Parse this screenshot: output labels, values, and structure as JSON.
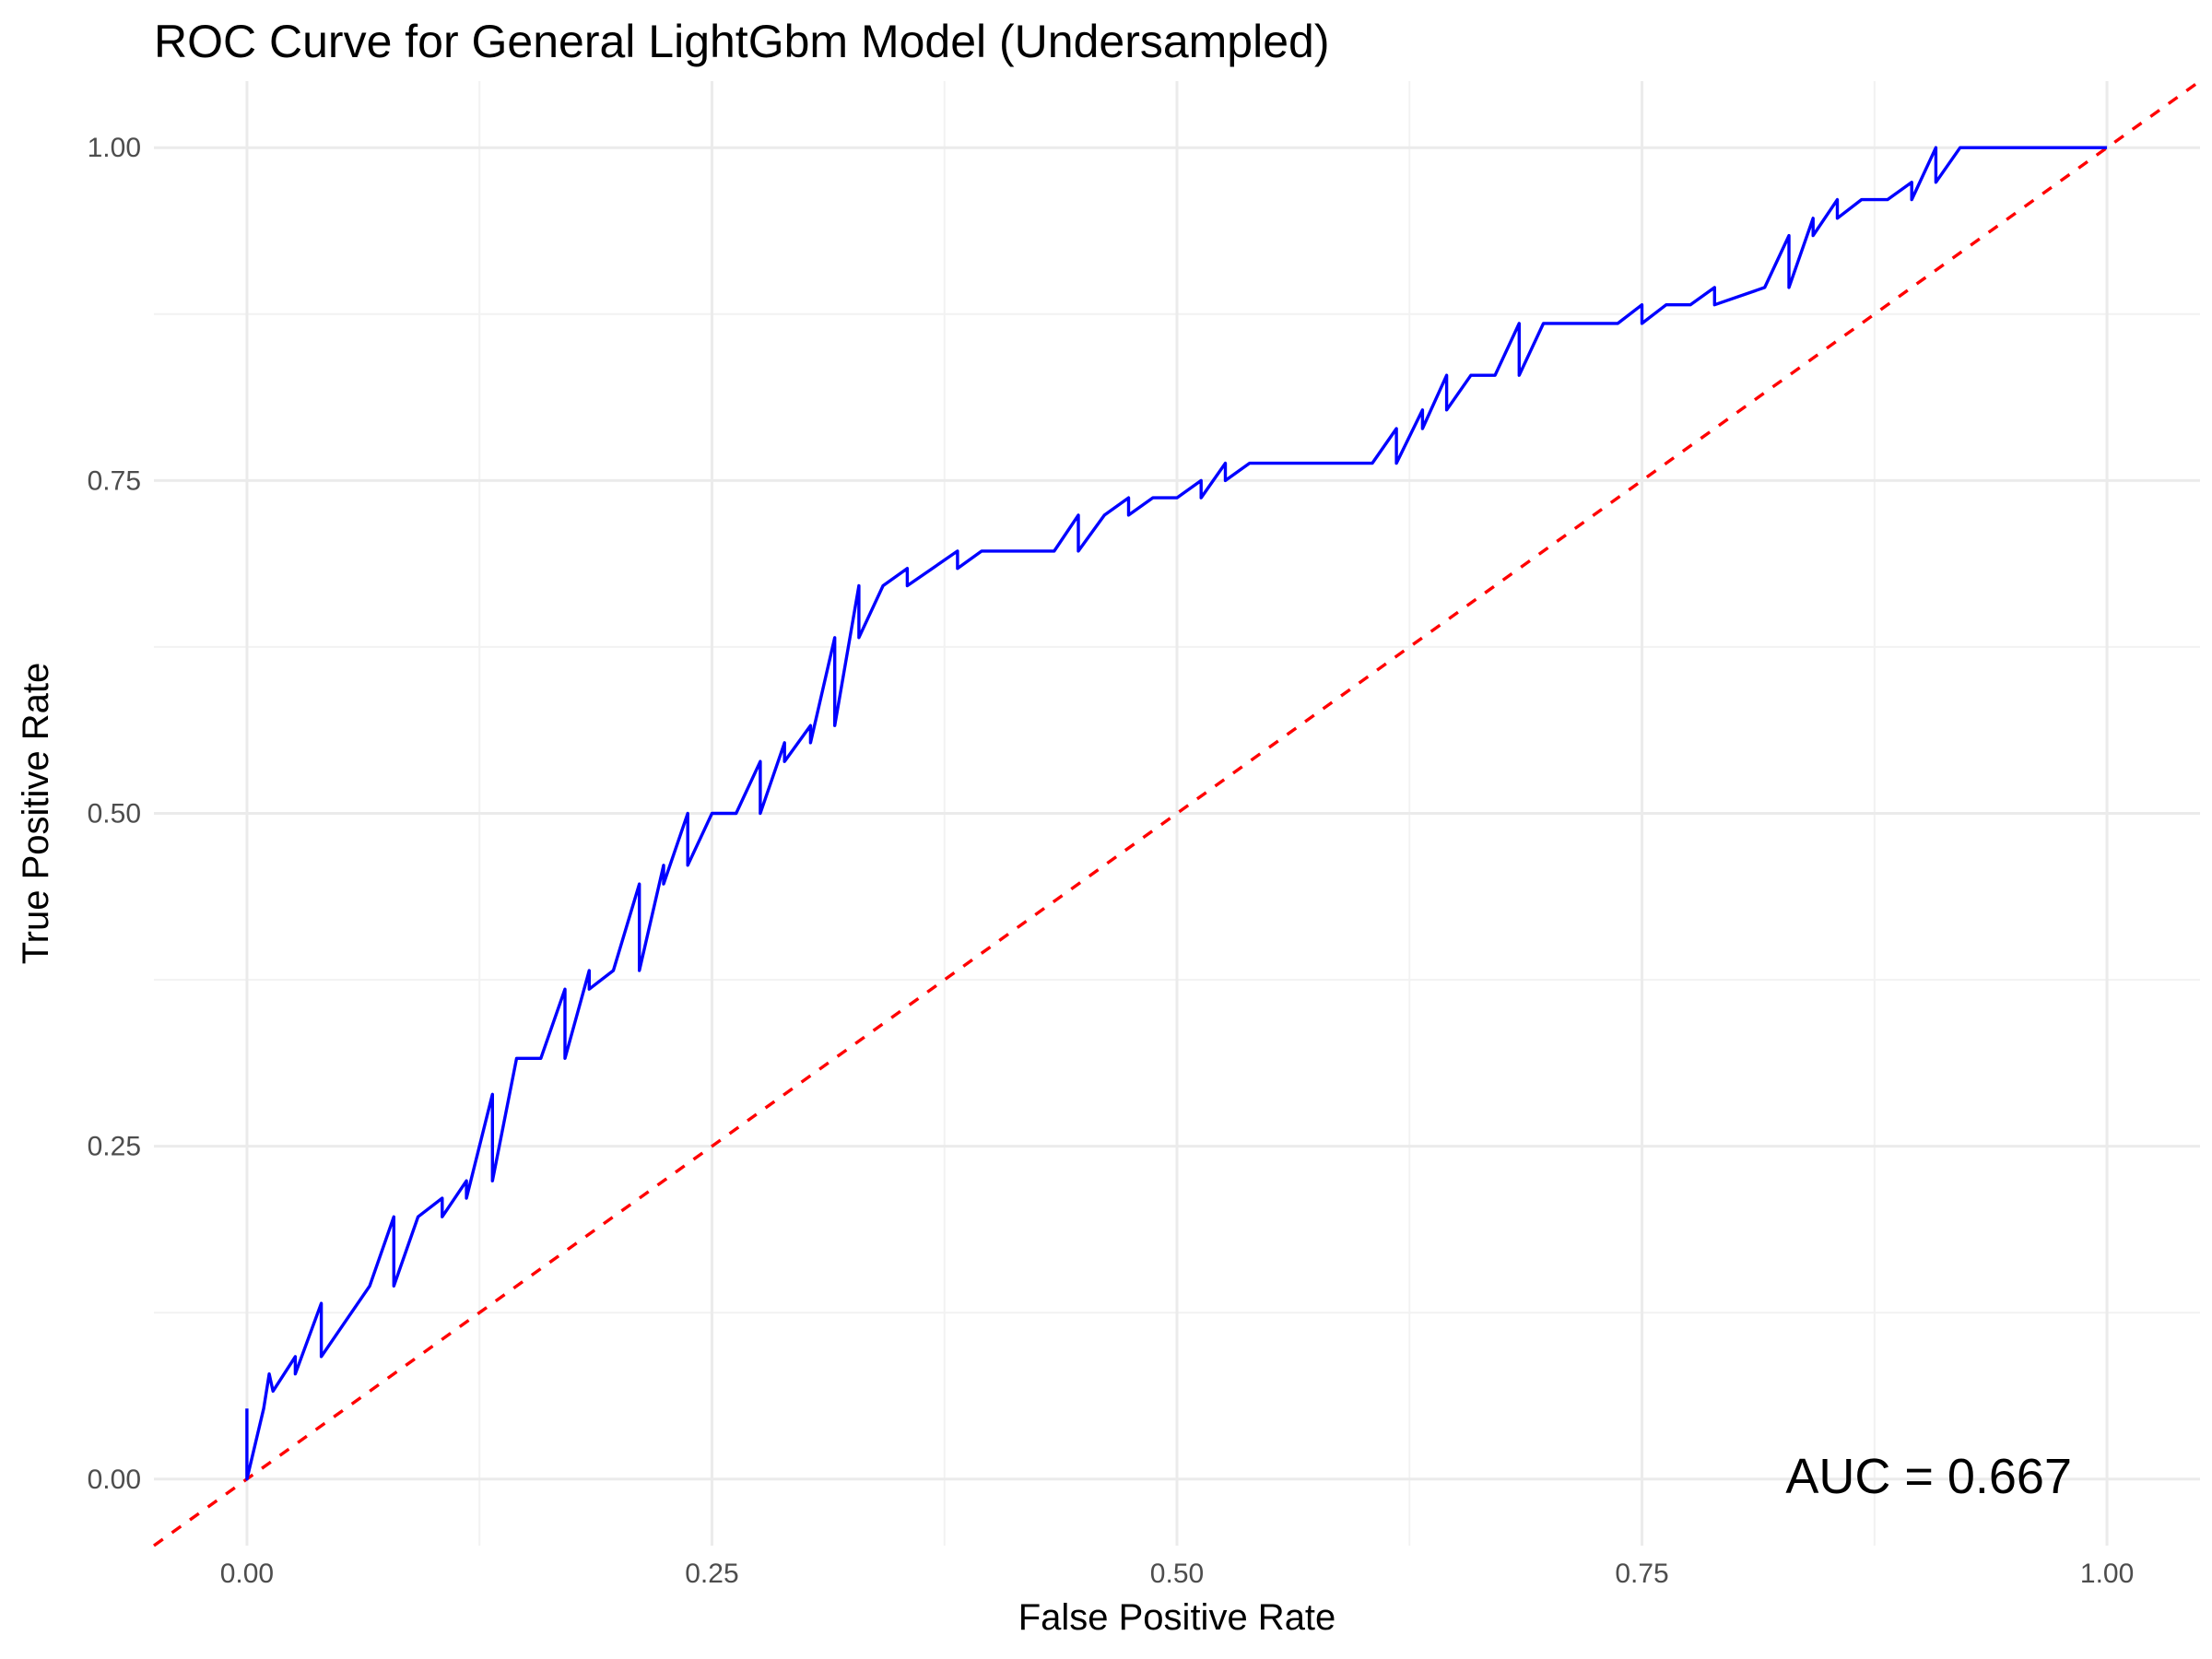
{
  "chart_data": {
    "type": "line",
    "title": "ROC Curve for General LightGbm Model (Undersampled)",
    "xlabel": "False Positive Rate",
    "ylabel": "True Positive Rate",
    "xlim": [
      -0.05,
      1.05
    ],
    "ylim": [
      -0.05,
      1.05
    ],
    "x_ticks": [
      "0.00",
      "0.25",
      "0.50",
      "0.75",
      "1.00"
    ],
    "y_ticks": [
      "0.00",
      "0.25",
      "0.50",
      "0.75",
      "1.00"
    ],
    "grid": true,
    "annotation": "AUC = 0.667",
    "series": [
      {
        "color": "#0000ff",
        "style": "solid",
        "x": [
          0.0,
          0.0,
          0.0,
          0.009,
          0.012,
          0.014,
          0.026,
          0.026,
          0.04,
          0.04,
          0.066,
          0.079,
          0.079,
          0.092,
          0.105,
          0.105,
          0.118,
          0.118,
          0.132,
          0.132,
          0.145,
          0.158,
          0.171,
          0.171,
          0.184,
          0.184,
          0.197,
          0.211,
          0.211,
          0.224,
          0.224,
          0.237,
          0.237,
          0.25,
          0.263,
          0.276,
          0.276,
          0.289,
          0.289,
          0.303,
          0.303,
          0.316,
          0.316,
          0.329,
          0.329,
          0.342,
          0.355,
          0.355,
          0.382,
          0.382,
          0.395,
          0.434,
          0.447,
          0.447,
          0.461,
          0.474,
          0.474,
          0.487,
          0.5,
          0.513,
          0.513,
          0.526,
          0.526,
          0.539,
          0.605,
          0.618,
          0.618,
          0.632,
          0.632,
          0.645,
          0.645,
          0.658,
          0.671,
          0.684,
          0.684,
          0.697,
          0.737,
          0.75,
          0.75,
          0.763,
          0.776,
          0.789,
          0.789,
          0.816,
          0.829,
          0.829,
          0.842,
          0.842,
          0.855,
          0.855,
          0.868,
          0.882,
          0.895,
          0.895,
          0.908,
          0.908,
          0.921,
          1.0
        ],
        "y": [
          0.053,
          0.0,
          0.0,
          0.053,
          0.079,
          0.066,
          0.092,
          0.079,
          0.132,
          0.092,
          0.145,
          0.197,
          0.145,
          0.197,
          0.211,
          0.197,
          0.224,
          0.211,
          0.289,
          0.224,
          0.316,
          0.316,
          0.368,
          0.316,
          0.382,
          0.368,
          0.382,
          0.447,
          0.382,
          0.461,
          0.447,
          0.5,
          0.461,
          0.5,
          0.5,
          0.539,
          0.5,
          0.553,
          0.539,
          0.566,
          0.553,
          0.632,
          0.566,
          0.671,
          0.632,
          0.671,
          0.684,
          0.671,
          0.697,
          0.684,
          0.697,
          0.697,
          0.724,
          0.697,
          0.724,
          0.737,
          0.724,
          0.737,
          0.737,
          0.75,
          0.737,
          0.763,
          0.75,
          0.763,
          0.763,
          0.789,
          0.763,
          0.803,
          0.789,
          0.829,
          0.803,
          0.829,
          0.829,
          0.868,
          0.829,
          0.868,
          0.868,
          0.882,
          0.868,
          0.882,
          0.882,
          0.895,
          0.882,
          0.895,
          0.934,
          0.895,
          0.947,
          0.934,
          0.961,
          0.947,
          0.961,
          0.961,
          0.974,
          0.961,
          1.0,
          0.974,
          1.0,
          1.0
        ]
      },
      {
        "color": "#ff0000",
        "style": "dashed",
        "x": [
          -0.05,
          1.05
        ],
        "y": [
          -0.05,
          1.05
        ]
      }
    ]
  }
}
